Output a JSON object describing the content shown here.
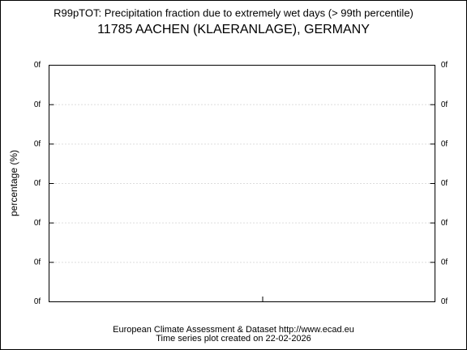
{
  "chart_data": {
    "type": "line",
    "title": "R99pTOT: Precipitation fraction due to extremely wet days (> 99th percentile)",
    "subtitle": "11785 AACHEN (KLAERANLAGE), GERMANY",
    "y_label": "percentage (%)",
    "y_categories": [
      "0f",
      "0f",
      "0f",
      "0f",
      "0f",
      "0f",
      "0f"
    ],
    "series": [],
    "grid": true,
    "footer": [
      "European Climate Assessment & Dataset  http://www.ecad.eu",
      "Time series plot created on 22-02-2026"
    ]
  }
}
